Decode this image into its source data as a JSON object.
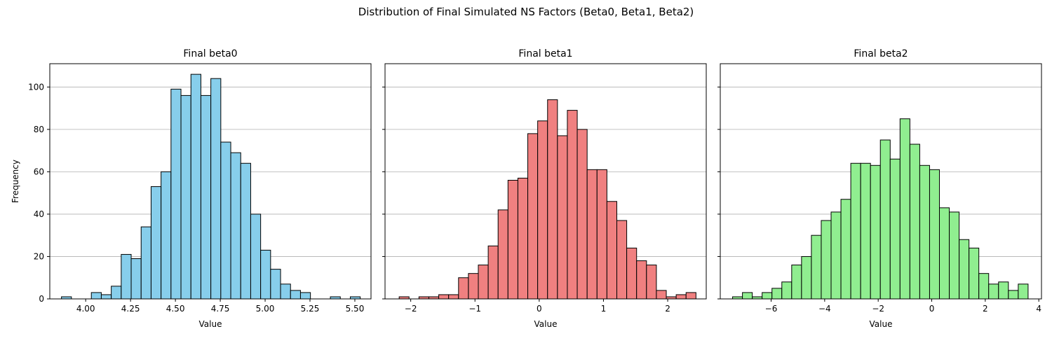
{
  "figure": {
    "suptitle": "Distribution of Final Simulated NS Factors (Beta0, Beta1, Beta2)"
  },
  "chart_data": [
    {
      "type": "bar",
      "subtype": "histogram",
      "title": "Final beta0",
      "xlabel": "Value",
      "ylabel": "Frequency",
      "xlim": [
        3.8,
        5.59
      ],
      "ylim": [
        0,
        111
      ],
      "xticks": [
        4.0,
        4.25,
        4.5,
        4.75,
        5.0,
        5.25,
        5.5
      ],
      "xtick_labels": [
        "4.00",
        "4.25",
        "4.50",
        "4.75",
        "5.00",
        "5.25",
        "5.50"
      ],
      "yticks": [
        0,
        20,
        40,
        60,
        80,
        100
      ],
      "ytick_labels": [
        "0",
        "20",
        "40",
        "60",
        "80",
        "100"
      ],
      "bin_start": 3.865,
      "bin_width": 0.0555,
      "values": [
        1,
        0,
        0,
        3,
        2,
        6,
        21,
        19,
        34,
        53,
        60,
        99,
        96,
        106,
        96,
        104,
        74,
        69,
        64,
        40,
        23,
        14,
        7,
        4,
        3,
        0,
        0,
        1,
        0,
        1
      ],
      "color": "#87ceeb",
      "edgecolor": "#000000",
      "grid": "y"
    },
    {
      "type": "bar",
      "subtype": "histogram",
      "title": "Final beta1",
      "xlabel": "Value",
      "ylabel": "",
      "xlim": [
        -2.4,
        2.6
      ],
      "ylim": [
        0,
        111
      ],
      "xticks": [
        -2,
        -1,
        0,
        1,
        2
      ],
      "xtick_labels": [
        "−2",
        "−1",
        "0",
        "1",
        "2"
      ],
      "yticks": [
        0,
        20,
        40,
        60,
        80,
        100
      ],
      "ytick_labels": [
        "",
        "",
        "",
        "",
        "",
        ""
      ],
      "bin_start": -2.18,
      "bin_width": 0.154,
      "values": [
        1,
        0,
        1,
        1,
        2,
        2,
        10,
        12,
        16,
        25,
        42,
        56,
        57,
        78,
        84,
        94,
        77,
        89,
        80,
        61,
        61,
        46,
        37,
        24,
        18,
        16,
        4,
        1,
        2,
        3
      ],
      "color": "#f08080",
      "edgecolor": "#000000",
      "grid": "y"
    },
    {
      "type": "bar",
      "subtype": "histogram",
      "title": "Final beta2",
      "xlabel": "Value",
      "ylabel": "",
      "xlim": [
        -7.9,
        4.1
      ],
      "ylim": [
        0,
        111
      ],
      "xticks": [
        -6,
        -4,
        -2,
        0,
        2,
        4
      ],
      "xtick_labels": [
        "−6",
        "−4",
        "−2",
        "0",
        "2",
        "4"
      ],
      "yticks": [
        0,
        20,
        40,
        60,
        80,
        100
      ],
      "ytick_labels": [
        "",
        "",
        "",
        "",
        "",
        ""
      ],
      "bin_start": -7.44,
      "bin_width": 0.368,
      "values": [
        1,
        3,
        1,
        3,
        5,
        8,
        16,
        20,
        30,
        37,
        41,
        47,
        64,
        64,
        63,
        75,
        66,
        85,
        73,
        63,
        61,
        43,
        41,
        28,
        24,
        12,
        7,
        8,
        4,
        7
      ],
      "color": "#90ee90",
      "edgecolor": "#000000",
      "grid": "y"
    }
  ]
}
